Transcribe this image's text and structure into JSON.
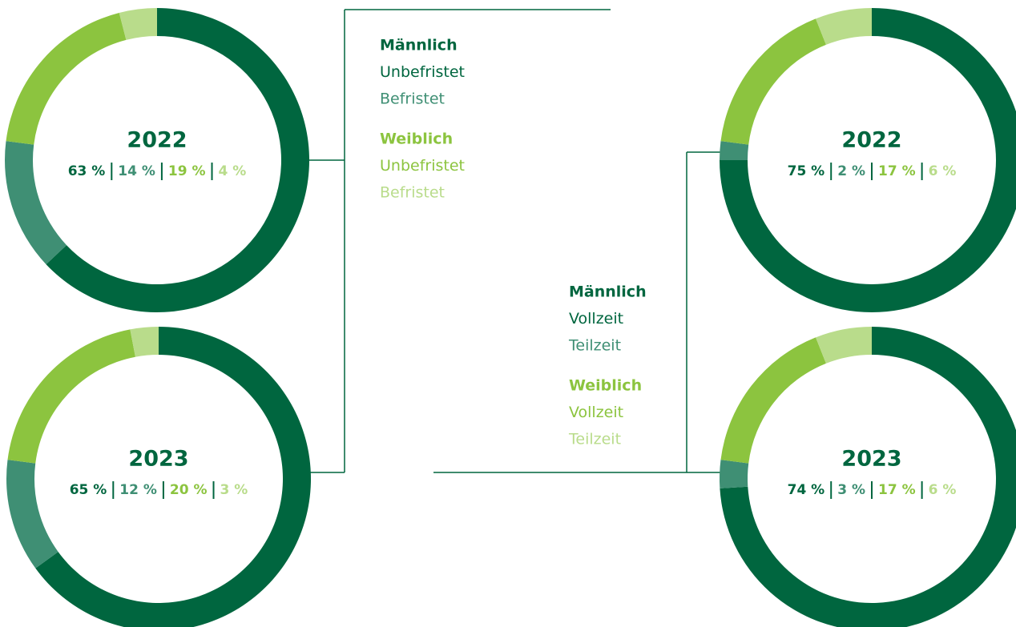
{
  "legends": [
    {
      "groups": [
        {
          "name": "Männlich",
          "items": [
            "Unbefristet",
            "Befristet"
          ]
        },
        {
          "name": "Weiblich",
          "items": [
            "Unbefristet",
            "Befristet"
          ]
        }
      ]
    },
    {
      "groups": [
        {
          "name": "Männlich",
          "items": [
            "Vollzeit",
            "Teilzeit"
          ]
        },
        {
          "name": "Weiblich",
          "items": [
            "Vollzeit",
            "Teilzeit"
          ]
        }
      ]
    }
  ],
  "chart_data": [
    {
      "type": "donut",
      "title": "2022",
      "values": [
        63,
        14,
        19,
        4
      ],
      "value_labels": [
        "63 %",
        "14 %",
        "19 %",
        "4 %"
      ],
      "colors": [
        "#00663f",
        "#3f8f74",
        "#8cc43f",
        "#b9dc8b"
      ]
    },
    {
      "type": "donut",
      "title": "2023",
      "values": [
        65,
        12,
        20,
        3
      ],
      "value_labels": [
        "65 %",
        "12 %",
        "20 %",
        "3 %"
      ],
      "colors": [
        "#00663f",
        "#3f8f74",
        "#8cc43f",
        "#b9dc8b"
      ]
    },
    {
      "type": "donut",
      "title": "2022",
      "values": [
        75,
        2,
        17,
        6
      ],
      "value_labels": [
        "75 %",
        "2 %",
        "17 %",
        "6 %"
      ],
      "colors": [
        "#00663f",
        "#3f8f74",
        "#8cc43f",
        "#b9dc8b"
      ]
    },
    {
      "type": "donut",
      "title": "2023",
      "values": [
        74,
        3,
        17,
        6
      ],
      "value_labels": [
        "74 %",
        "3 %",
        "17 %",
        "6 %"
      ],
      "colors": [
        "#00663f",
        "#3f8f74",
        "#8cc43f",
        "#b9dc8b"
      ]
    }
  ]
}
